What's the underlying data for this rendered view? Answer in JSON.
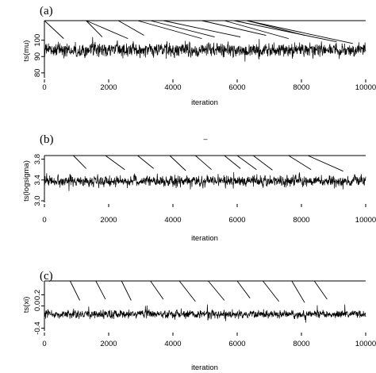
{
  "chart_data": [
    {
      "type": "line",
      "panel_label": "(a)",
      "xlabel": "iteration",
      "ylabel": "ts(mu)",
      "xlim": [
        0,
        10000
      ],
      "ylim": [
        77,
        112
      ],
      "xticks": [
        "0",
        "2000",
        "4000",
        "6000",
        "8000",
        "10000"
      ],
      "yticks": [
        "80",
        "90",
        "100"
      ],
      "series": [
        {
          "n": 10000,
          "center": 94,
          "amplitude": 7,
          "min": 83,
          "max": 106
        }
      ],
      "jump_lines": [
        {
          "from": [
            0,
            112
          ],
          "to": [
            600,
            101
          ]
        },
        {
          "from": [
            1300,
            112
          ],
          "to": [
            1800,
            102
          ]
        },
        {
          "from": [
            1300,
            112
          ],
          "to": [
            2600,
            101
          ]
        },
        {
          "from": [
            2300,
            112
          ],
          "to": [
            3100,
            103
          ]
        },
        {
          "from": [
            2900,
            112
          ],
          "to": [
            4900,
            101
          ]
        },
        {
          "from": [
            3300,
            112
          ],
          "to": [
            5300,
            102
          ]
        },
        {
          "from": [
            3700,
            112
          ],
          "to": [
            6100,
            102
          ]
        },
        {
          "from": [
            4900,
            112
          ],
          "to": [
            6900,
            103
          ]
        },
        {
          "from": [
            5600,
            112
          ],
          "to": [
            7600,
            101
          ]
        },
        {
          "from": [
            6300,
            112
          ],
          "to": [
            8100,
            103
          ]
        },
        {
          "from": [
            6300,
            112
          ],
          "to": [
            9600,
            98
          ]
        },
        {
          "from": [
            5900,
            112
          ],
          "to": [
            9100,
            99
          ]
        }
      ]
    },
    {
      "type": "line",
      "panel_label": "(b)",
      "xlabel": "iteration",
      "ylabel": "ts(logsigma)",
      "xlim": [
        0,
        10000
      ],
      "ylim": [
        2.97,
        3.87
      ],
      "xticks": [
        "0",
        "2000",
        "4000",
        "6000",
        "8000",
        "10000"
      ],
      "yticks": [
        "3.0",
        "3.4",
        "3.8"
      ],
      "series": [
        {
          "n": 10000,
          "center": 3.38,
          "amplitude": 0.17,
          "min": 3.1,
          "max": 3.74
        }
      ],
      "jump_lines": [
        {
          "from": [
            900,
            3.87
          ],
          "to": [
            1300,
            3.62
          ]
        },
        {
          "from": [
            1900,
            3.87
          ],
          "to": [
            2500,
            3.6
          ]
        },
        {
          "from": [
            2900,
            3.87
          ],
          "to": [
            3400,
            3.62
          ]
        },
        {
          "from": [
            3900,
            3.87
          ],
          "to": [
            4400,
            3.58
          ]
        },
        {
          "from": [
            4700,
            3.87
          ],
          "to": [
            5200,
            3.6
          ]
        },
        {
          "from": [
            5600,
            3.87
          ],
          "to": [
            6100,
            3.62
          ]
        },
        {
          "from": [
            6000,
            3.87
          ],
          "to": [
            6600,
            3.6
          ]
        },
        {
          "from": [
            6500,
            3.87
          ],
          "to": [
            7100,
            3.59
          ]
        },
        {
          "from": [
            7600,
            3.87
          ],
          "to": [
            8300,
            3.6
          ]
        },
        {
          "from": [
            8200,
            3.87
          ],
          "to": [
            9300,
            3.57
          ]
        }
      ]
    },
    {
      "type": "line",
      "panel_label": "(c)",
      "xlabel": "iteration",
      "ylabel": "ts(xi)",
      "xlim": [
        0,
        10000
      ],
      "ylim": [
        -0.45,
        0.45
      ],
      "xticks": [
        "0",
        "2000",
        "4000",
        "6000",
        "8000",
        "10000"
      ],
      "yticks": [
        "-0.4",
        "0.0",
        "0.2"
      ],
      "series": [
        {
          "n": 10000,
          "center": -0.15,
          "amplitude": 0.12,
          "min": -0.42,
          "max": 0.18
        }
      ],
      "jump_lines": [
        {
          "from": [
            800,
            0.45
          ],
          "to": [
            1100,
            0.1
          ]
        },
        {
          "from": [
            1600,
            0.45
          ],
          "to": [
            1900,
            0.12
          ]
        },
        {
          "from": [
            2400,
            0.45
          ],
          "to": [
            2700,
            0.1
          ]
        },
        {
          "from": [
            3300,
            0.45
          ],
          "to": [
            3700,
            0.12
          ]
        },
        {
          "from": [
            4200,
            0.45
          ],
          "to": [
            4700,
            0.08
          ]
        },
        {
          "from": [
            5100,
            0.45
          ],
          "to": [
            5600,
            0.1
          ]
        },
        {
          "from": [
            6000,
            0.45
          ],
          "to": [
            6400,
            0.14
          ]
        },
        {
          "from": [
            6800,
            0.45
          ],
          "to": [
            7300,
            0.08
          ]
        },
        {
          "from": [
            7700,
            0.45
          ],
          "to": [
            8100,
            0.06
          ]
        },
        {
          "from": [
            8400,
            0.45
          ],
          "to": [
            8800,
            0.12
          ]
        }
      ]
    }
  ],
  "stray_mark": "–"
}
